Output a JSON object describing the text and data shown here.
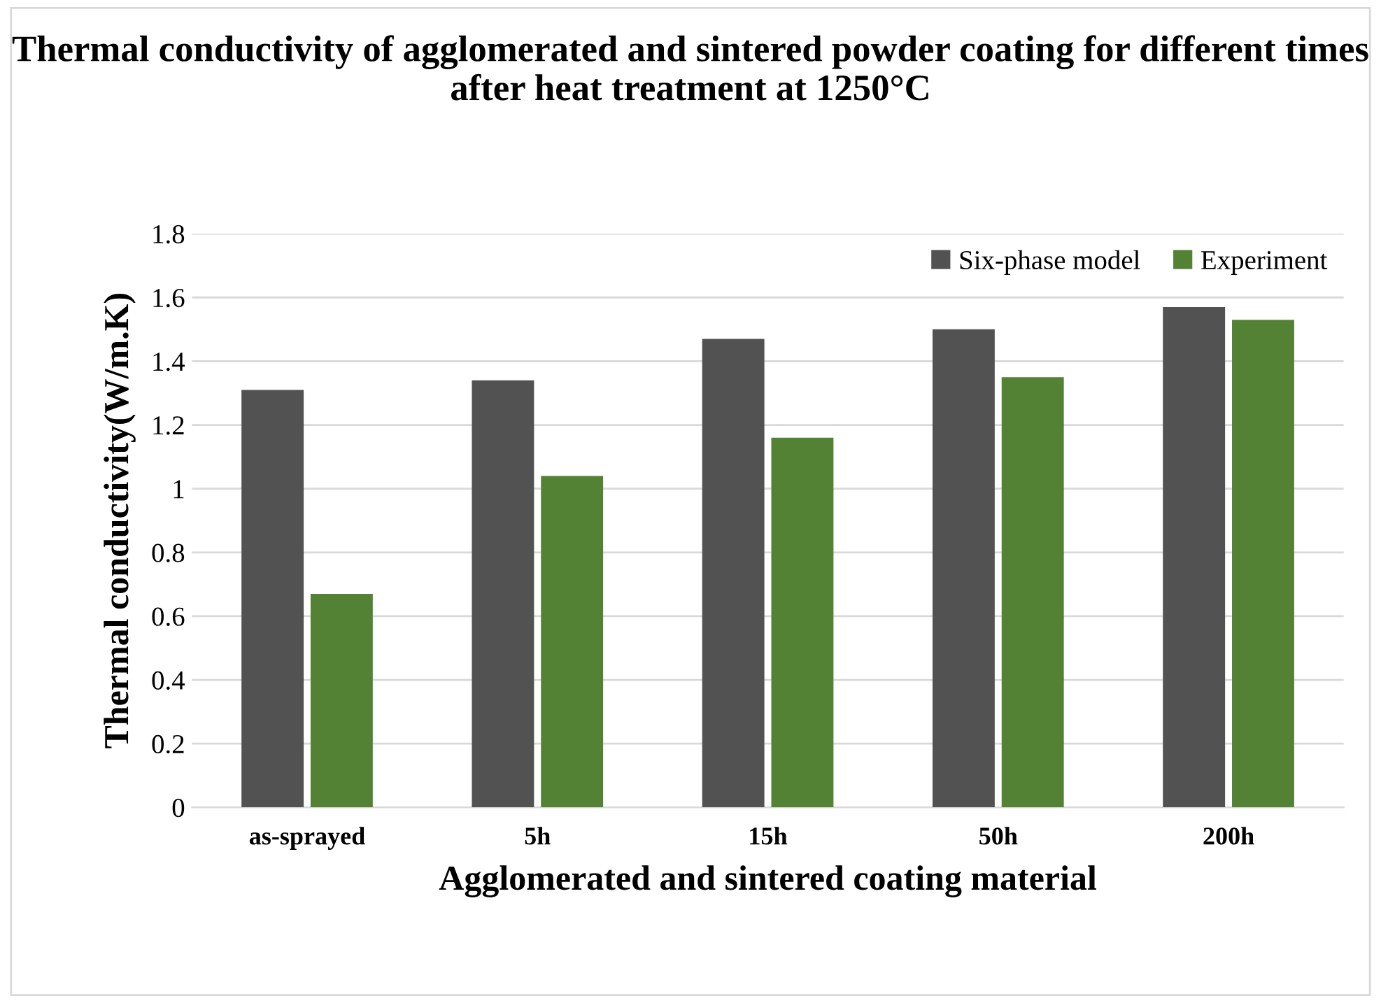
{
  "chart_data": {
    "type": "bar",
    "title": "Thermal conductivity of agglomerated and sintered powder coating for different times after heat treatment at 1250°C",
    "xlabel": "Agglomerated and sintered coating material",
    "ylabel": "Thermal conductivity(W/m.K)",
    "categories": [
      "as-sprayed",
      "5h",
      "15h",
      "50h",
      "200h"
    ],
    "series": [
      {
        "name": "Six-phase model",
        "color": "#525252",
        "values": [
          1.31,
          1.34,
          1.47,
          1.5,
          1.57
        ]
      },
      {
        "name": "Experiment",
        "color": "#548235",
        "values": [
          0.67,
          1.04,
          1.16,
          1.35,
          1.53
        ]
      }
    ],
    "ylim": [
      0,
      1.8
    ],
    "yticks": [
      0,
      {
        "value": 0.2,
        "label": "0.2"
      },
      {
        "value": 0.4,
        "label": "0.4"
      },
      {
        "value": 0.6,
        "label": "0.6"
      },
      {
        "value": 0.8,
        "label": "0.8"
      },
      1,
      {
        "value": 1.2,
        "label": "1.2"
      },
      {
        "value": 1.4,
        "label": "1.4"
      },
      {
        "value": 1.6,
        "label": "1.6"
      },
      {
        "value": 1.8,
        "label": "1.8"
      }
    ],
    "grid": "y",
    "legend": "top right"
  }
}
